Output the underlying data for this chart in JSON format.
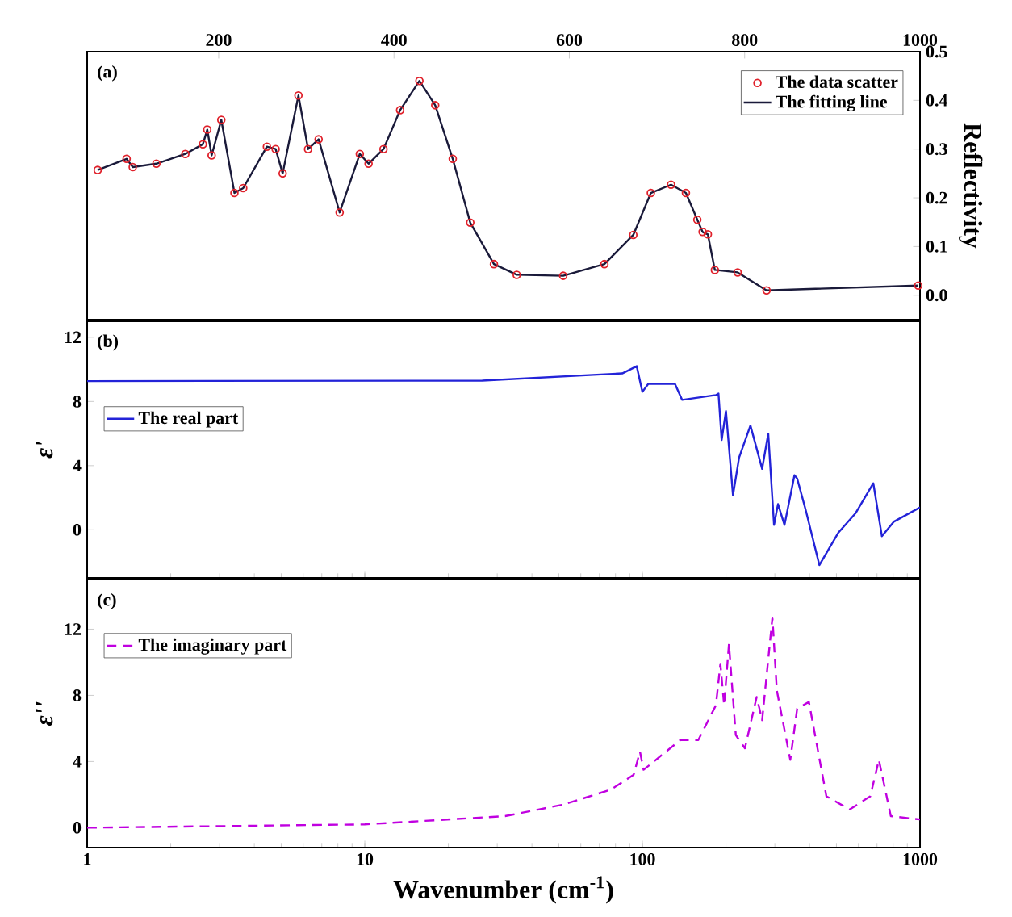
{
  "chart_data": [
    {
      "type": "line",
      "xlim": [
        50,
        1000
      ],
      "ylim": [
        -0.05,
        0.5
      ],
      "xticks": [
        200,
        400,
        600,
        800,
        1000
      ],
      "yticks": [
        {
          "value": 0,
          "label": "0.0"
        },
        0.1,
        0.2,
        0.3,
        0.4,
        0.5
      ],
      "ylabel": "Reflectivity",
      "annotations": [
        "(a)"
      ],
      "legend": "top right",
      "series": [
        {
          "name": "The data scatter",
          "type": "scatter",
          "marker": "circle",
          "color": "#e0202a",
          "x": [
            62,
            95,
            102,
            129,
            162,
            182,
            187,
            192,
            203,
            218,
            228,
            255,
            265,
            273,
            291,
            302,
            314,
            338,
            361,
            371,
            388,
            407,
            429,
            447,
            467,
            487,
            514,
            540,
            593,
            640,
            673,
            693,
            716,
            733,
            746,
            752,
            758,
            766,
            792,
            825,
            998
          ],
          "values": [
            0.257,
            0.28,
            0.263,
            0.27,
            0.29,
            0.31,
            0.34,
            0.287,
            0.36,
            0.21,
            0.22,
            0.305,
            0.3,
            0.25,
            0.41,
            0.3,
            0.32,
            0.17,
            0.29,
            0.27,
            0.3,
            0.38,
            0.44,
            0.39,
            0.28,
            0.149,
            0.064,
            0.042,
            0.04,
            0.064,
            0.124,
            0.21,
            0.227,
            0.21,
            0.155,
            0.13,
            0.125,
            0.052,
            0.047,
            0.01,
            0.02
          ]
        },
        {
          "name": "The fitting line",
          "type": "line",
          "color": "#1a1a3a",
          "x": [
            62,
            95,
            102,
            129,
            162,
            182,
            187,
            192,
            203,
            218,
            228,
            255,
            265,
            273,
            291,
            302,
            314,
            338,
            361,
            371,
            388,
            407,
            429,
            447,
            467,
            487,
            514,
            540,
            593,
            640,
            673,
            693,
            716,
            733,
            746,
            752,
            758,
            766,
            792,
            825,
            998
          ],
          "values": [
            0.257,
            0.28,
            0.263,
            0.27,
            0.29,
            0.31,
            0.34,
            0.287,
            0.36,
            0.21,
            0.22,
            0.305,
            0.3,
            0.25,
            0.41,
            0.3,
            0.32,
            0.17,
            0.29,
            0.27,
            0.3,
            0.38,
            0.44,
            0.39,
            0.28,
            0.149,
            0.064,
            0.042,
            0.04,
            0.064,
            0.124,
            0.21,
            0.227,
            0.21,
            0.155,
            0.13,
            0.125,
            0.052,
            0.047,
            0.01,
            0.02
          ]
        }
      ]
    },
    {
      "type": "line",
      "log": "x",
      "xlim": [
        1,
        1000
      ],
      "ylim": [
        -3,
        13
      ],
      "xticks": [
        1,
        10,
        100,
        1000
      ],
      "yticks": [
        0,
        4,
        8,
        12
      ],
      "tick_labels": "y",
      "ylabel": "ε'",
      "annotations": [
        "(b)"
      ],
      "legend": "left",
      "series": [
        {
          "name": "The real part",
          "color": "#2323d8",
          "line_style": "solid",
          "x": [
            1,
            26.5,
            84.6,
            95.4,
            100,
            105,
            131,
            139,
            184,
            188,
            193,
            200,
            212,
            223,
            245,
            270,
            284,
            298,
            308,
            325,
            353,
            361,
            388,
            434,
            507,
            587,
            679,
            729,
            804,
            1000
          ],
          "values": [
            9.27,
            9.3,
            9.75,
            10.2,
            8.6,
            9.1,
            9.1,
            8.1,
            8.4,
            8.5,
            5.6,
            7.4,
            2.15,
            4.5,
            6.5,
            3.8,
            6.0,
            0.3,
            1.6,
            0.3,
            3.4,
            3.2,
            1.2,
            -2.2,
            -0.2,
            1.05,
            2.9,
            -0.4,
            0.5,
            1.4
          ]
        }
      ]
    },
    {
      "type": "line",
      "log": "x",
      "xlim": [
        1,
        1000
      ],
      "ylim": [
        -1.2,
        15
      ],
      "xticks": [
        1,
        10,
        100,
        1000
      ],
      "yticks": [
        0,
        4,
        8,
        12
      ],
      "xlabel": "Wavenumber (cm$^{-1}$)",
      "ylabel": "ε''",
      "annotations": [
        "(c)"
      ],
      "legend": "top left",
      "series": [
        {
          "name": "The imaginary part",
          "color": "#c000e0",
          "line_style": "dashed",
          "x": [
            1,
            10,
            32,
            52,
            77,
            93,
            98,
            101,
            137,
            159,
            184,
            191,
            197,
            205,
            217,
            234,
            258,
            270,
            294,
            305,
            341,
            361,
            398,
            460,
            558,
            662,
            711,
            785,
            1000
          ],
          "values": [
            0.0,
            0.2,
            0.7,
            1.4,
            2.3,
            3.2,
            4.6,
            3.5,
            5.3,
            5.3,
            7.4,
            9.9,
            7.4,
            11.1,
            5.6,
            4.8,
            7.9,
            6.5,
            12.7,
            8.3,
            4.1,
            7.2,
            7.6,
            1.9,
            1.1,
            1.9,
            4.1,
            0.7,
            0.5
          ]
        }
      ]
    }
  ]
}
